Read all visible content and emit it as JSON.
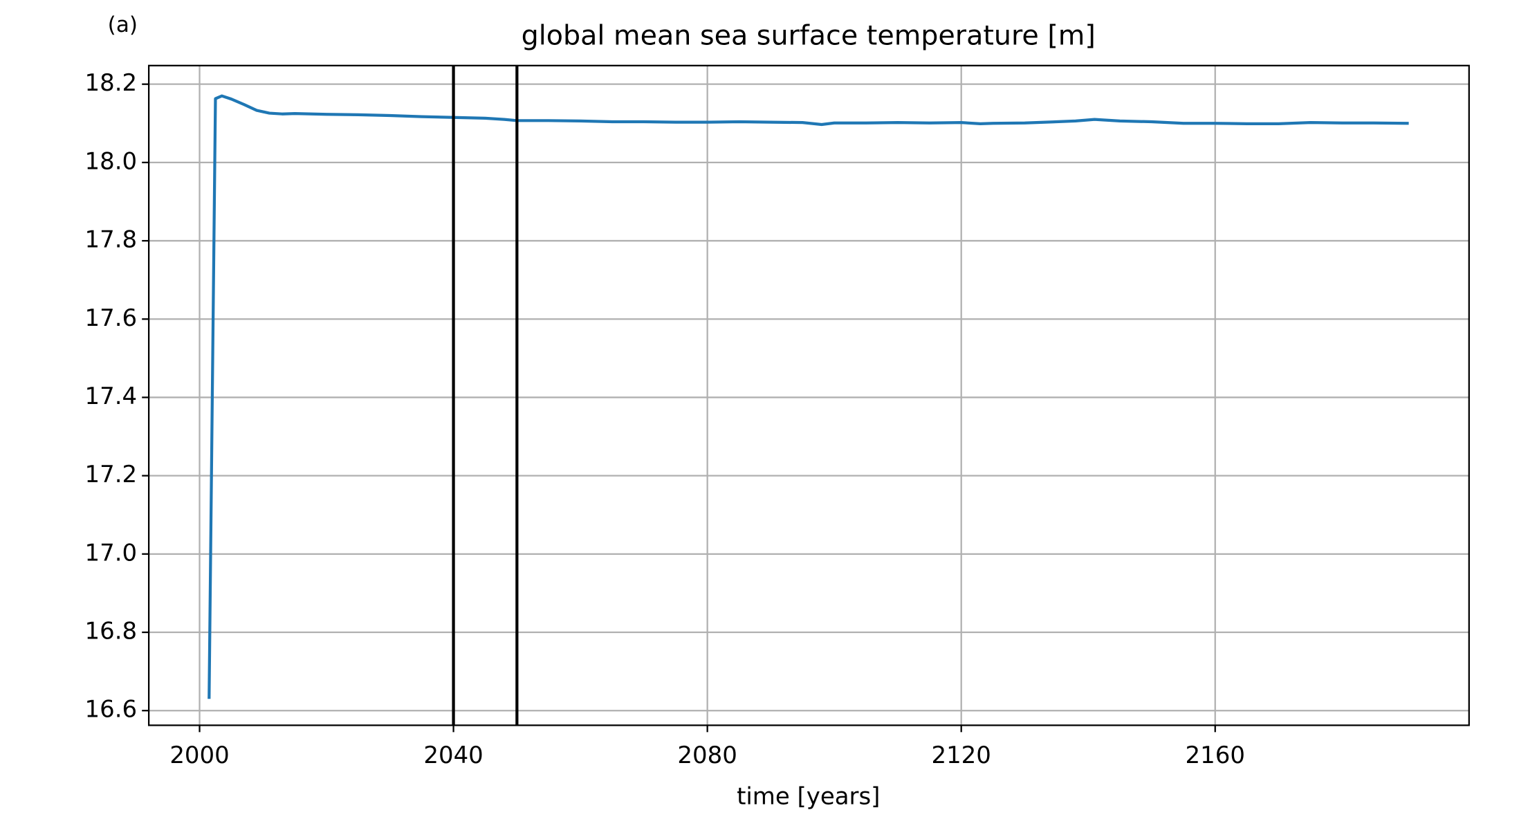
{
  "chart_data": {
    "type": "line",
    "annotation": "(a)",
    "title": "global mean sea surface temperature [m]",
    "xlabel": "time [years]",
    "x": [
      2001.5,
      2002.5,
      2003.5,
      2005,
      2007,
      2009,
      2011,
      2013,
      2015,
      2020,
      2025,
      2030,
      2035,
      2040,
      2045,
      2048,
      2050,
      2055,
      2060,
      2065,
      2070,
      2075,
      2080,
      2085,
      2090,
      2095,
      2098,
      2100,
      2105,
      2110,
      2115,
      2120,
      2123,
      2125,
      2130,
      2135,
      2138,
      2141,
      2145,
      2150,
      2155,
      2160,
      2165,
      2170,
      2175,
      2180,
      2185,
      2190.5
    ],
    "series": [
      {
        "color": "#1f77b4",
        "values": [
          16.63,
          18.163,
          18.17,
          18.162,
          18.148,
          18.133,
          18.126,
          18.124,
          18.125,
          18.123,
          18.122,
          18.12,
          18.117,
          18.115,
          18.113,
          18.11,
          18.107,
          18.107,
          18.106,
          18.104,
          18.104,
          18.103,
          18.103,
          18.104,
          18.103,
          18.102,
          18.097,
          18.101,
          18.101,
          18.102,
          18.101,
          18.102,
          18.099,
          18.1,
          18.101,
          18.104,
          18.106,
          18.11,
          18.106,
          18.104,
          18.1,
          18.1,
          18.099,
          18.099,
          18.102,
          18.101,
          18.101,
          18.1
        ]
      }
    ],
    "vlines": [
      2040,
      2050
    ],
    "vline_color": "#000000",
    "xlim": [
      1992,
      2200
    ],
    "xticks": [
      2000,
      2040,
      2080,
      2120,
      2160
    ],
    "ylim": [
      16.5625,
      18.2475
    ],
    "yticks": [
      {
        "value": 16.6,
        "label": "16.6"
      },
      {
        "value": 16.8,
        "label": "16.8"
      },
      {
        "value": 17.0,
        "label": "17.0"
      },
      {
        "value": 17.2,
        "label": "17.2"
      },
      {
        "value": 17.4,
        "label": "17.4"
      },
      {
        "value": 17.6,
        "label": "17.6"
      },
      {
        "value": 17.8,
        "label": "17.8"
      },
      {
        "value": 18.0,
        "label": "18.0"
      },
      {
        "value": 18.2,
        "label": "18.2"
      }
    ],
    "grid": true
  }
}
